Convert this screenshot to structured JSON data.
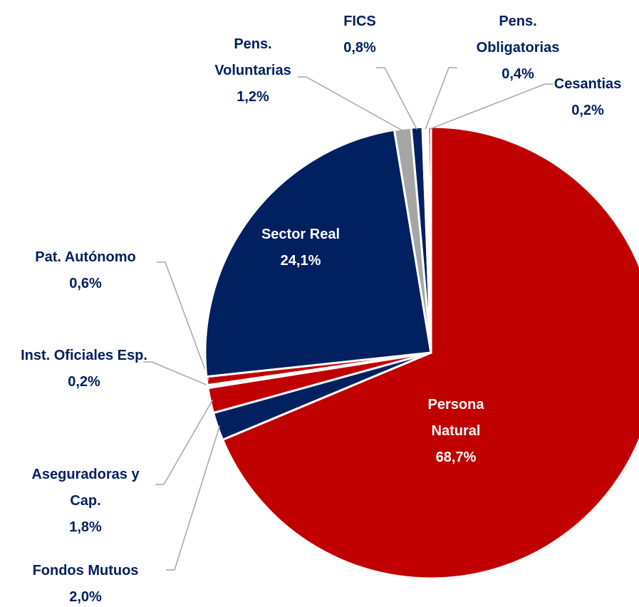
{
  "chart_data": {
    "type": "pie",
    "categories": [
      "Persona Natural",
      "Fondos Mutuos",
      "Aseguradoras y Cap.",
      "Inst. Oficiales Esp.",
      "Pat. Autónomo",
      "Sector Real",
      "Pens. Voluntarias",
      "FICS",
      "Pens. Obligatorias",
      "Cesantias"
    ],
    "values": [
      68.7,
      2.0,
      1.8,
      0.2,
      0.6,
      24.1,
      1.2,
      0.8,
      0.4,
      0.2
    ],
    "value_labels": [
      "68,7%",
      "2,0%",
      "1,8%",
      "0,2%",
      "0,6%",
      "24,1%",
      "1,2%",
      "0,8%",
      "0,4%",
      "0,2%"
    ],
    "colors": [
      "#c00000",
      "#002060",
      "#c00000",
      "#ffffff",
      "#c00000",
      "#002060",
      "#a6a6a6",
      "#002060",
      "#ffffff",
      "#c00000"
    ]
  }
}
